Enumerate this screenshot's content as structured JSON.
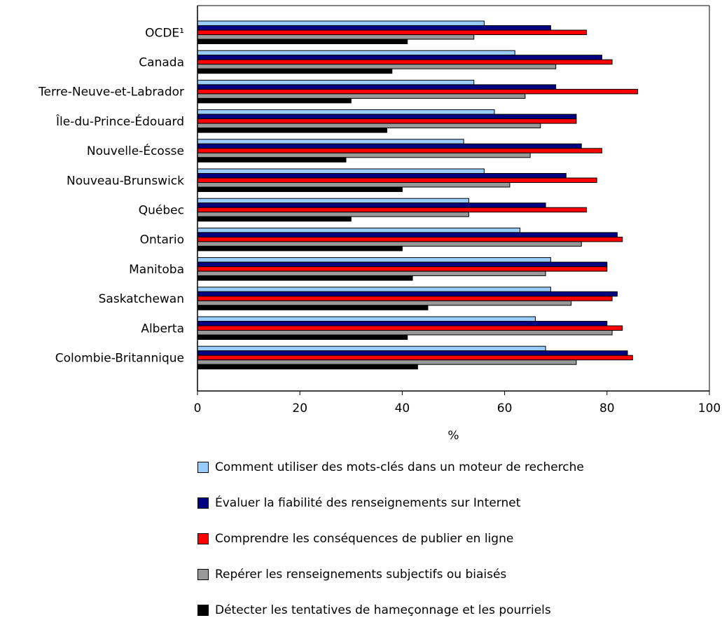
{
  "chart_data": {
    "type": "bar",
    "orientation": "horizontal",
    "title": "",
    "xlabel": "%",
    "ylabel": "",
    "xlim": [
      0,
      100
    ],
    "x_ticks": [
      "0",
      "20",
      "40",
      "60",
      "80",
      "100"
    ],
    "grid": false,
    "legend_position": "bottom",
    "categories": [
      "OCDE¹",
      "Canada",
      "Terre-Neuve-et-Labrador",
      "Île-du-Prince-Édouard",
      "Nouvelle-Écosse",
      "Nouveau-Brunswick",
      "Québec",
      "Ontario",
      "Manitoba",
      "Saskatchewan",
      "Alberta",
      "Colombie-Britannique"
    ],
    "series": [
      {
        "name": "Comment utiliser des mots-clés dans un moteur de recherche",
        "color": "#99ccff",
        "values": [
          56,
          62,
          54,
          58,
          52,
          56,
          53,
          63,
          69,
          69,
          66,
          68
        ]
      },
      {
        "name": "Évaluer la fiabilité des renseignements sur Internet",
        "color": "#000080",
        "values": [
          69,
          79,
          70,
          74,
          75,
          72,
          68,
          82,
          80,
          82,
          80,
          84
        ]
      },
      {
        "name": "Comprendre les conséquences de publier en ligne",
        "color": "#ff0000",
        "values": [
          76,
          81,
          86,
          74,
          79,
          78,
          76,
          83,
          80,
          81,
          83,
          85
        ]
      },
      {
        "name": "Repérer les renseignements subjectifs ou biaisés",
        "color": "#999999",
        "values": [
          54,
          70,
          64,
          67,
          65,
          61,
          53,
          75,
          68,
          73,
          81,
          74
        ]
      },
      {
        "name": "Détecter les tentatives de hameçonnage et les pourriels",
        "color": "#000000",
        "values": [
          41,
          38,
          30,
          37,
          29,
          40,
          30,
          40,
          42,
          45,
          41,
          43
        ]
      }
    ]
  }
}
